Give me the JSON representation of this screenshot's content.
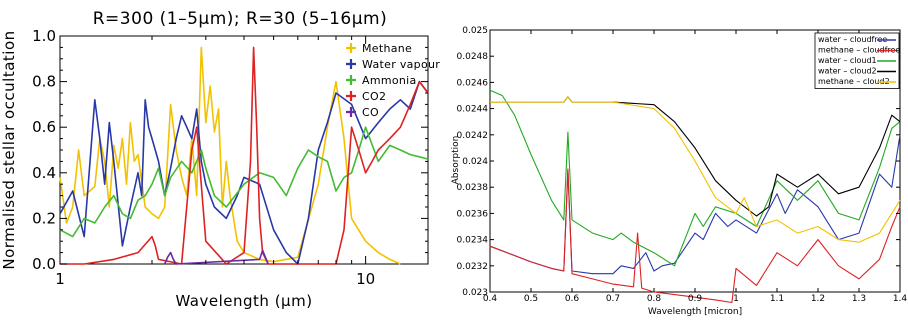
{
  "chart_data": [
    {
      "type": "line",
      "title": "R=300 (1–5μm); R=30 (5–16μm)",
      "xlabel": "Wavelength (μm)",
      "ylabel": "Normalised stellar occultation",
      "x_scale": "log",
      "xlim": [
        1,
        16
      ],
      "ylim": [
        0,
        1.0
      ],
      "x_ticks": [
        "1",
        "10"
      ],
      "y_ticks": [
        "0.0",
        "0.2",
        "0.4",
        "0.6",
        "0.8",
        "1.0"
      ],
      "legend_position": "top-right",
      "series": [
        {
          "name": "Methane",
          "color": "#f2c200",
          "x": [
            1.0,
            1.05,
            1.1,
            1.15,
            1.2,
            1.25,
            1.3,
            1.35,
            1.4,
            1.45,
            1.5,
            1.55,
            1.6,
            1.65,
            1.7,
            1.75,
            1.8,
            1.9,
            2.0,
            2.1,
            2.2,
            2.3,
            2.4,
            2.5,
            2.6,
            2.7,
            2.8,
            2.9,
            3.0,
            3.1,
            3.2,
            3.3,
            3.4,
            3.5,
            3.6,
            3.8,
            4.0,
            4.5,
            5.0,
            6.0,
            7.0,
            7.5,
            8.0,
            8.5,
            9.0,
            10.0,
            11.0,
            12.0,
            13.0
          ],
          "y": [
            0.38,
            0.18,
            0.25,
            0.5,
            0.3,
            0.32,
            0.34,
            0.55,
            0.45,
            0.25,
            0.52,
            0.42,
            0.55,
            0.35,
            0.62,
            0.45,
            0.48,
            0.25,
            0.22,
            0.2,
            0.25,
            0.7,
            0.5,
            0.38,
            0.3,
            0.55,
            0.3,
            0.95,
            0.62,
            0.78,
            0.58,
            0.68,
            0.25,
            0.45,
            0.3,
            0.1,
            0.05,
            0.02,
            0.01,
            0.03,
            0.35,
            0.6,
            0.8,
            0.55,
            0.2,
            0.1,
            0.05,
            0.02,
            0.0
          ]
        },
        {
          "name": "Water vapour",
          "color": "#2838a8",
          "x": [
            1.0,
            1.1,
            1.2,
            1.3,
            1.35,
            1.4,
            1.45,
            1.5,
            1.6,
            1.7,
            1.8,
            1.85,
            1.9,
            1.95,
            2.0,
            2.1,
            2.2,
            2.3,
            2.4,
            2.5,
            2.6,
            2.7,
            2.8,
            2.9,
            3.0,
            3.2,
            3.5,
            3.8,
            4.0,
            4.5,
            5.0,
            5.5,
            6.0,
            6.5,
            7.0,
            7.5,
            8.0,
            9.0,
            10.0,
            11.0,
            12.0,
            13.0,
            14.0,
            15.0,
            16.0
          ],
          "y": [
            0.22,
            0.32,
            0.12,
            0.72,
            0.55,
            0.35,
            0.62,
            0.45,
            0.08,
            0.25,
            0.4,
            0.3,
            0.72,
            0.6,
            0.55,
            0.45,
            0.3,
            0.42,
            0.55,
            0.65,
            0.6,
            0.55,
            0.68,
            0.45,
            0.35,
            0.25,
            0.2,
            0.3,
            0.38,
            0.35,
            0.15,
            0.05,
            0.0,
            0.2,
            0.5,
            0.62,
            0.75,
            0.7,
            0.55,
            0.62,
            0.68,
            0.72,
            0.68,
            0.8,
            0.75
          ]
        },
        {
          "name": "Ammonia",
          "color": "#44bb33",
          "x": [
            1.0,
            1.1,
            1.2,
            1.3,
            1.4,
            1.5,
            1.6,
            1.7,
            1.8,
            1.9,
            2.0,
            2.1,
            2.2,
            2.3,
            2.5,
            2.7,
            2.9,
            3.0,
            3.2,
            3.5,
            4.0,
            4.5,
            5.0,
            5.5,
            6.0,
            6.5,
            7.0,
            7.5,
            8.0,
            8.5,
            9.0,
            9.5,
            10.0,
            11.0,
            12.0,
            13.0,
            14.0,
            15.0,
            16.0
          ],
          "y": [
            0.15,
            0.12,
            0.2,
            0.18,
            0.25,
            0.3,
            0.22,
            0.2,
            0.28,
            0.3,
            0.35,
            0.42,
            0.3,
            0.38,
            0.45,
            0.4,
            0.5,
            0.42,
            0.3,
            0.25,
            0.35,
            0.4,
            0.38,
            0.3,
            0.42,
            0.5,
            0.47,
            0.45,
            0.32,
            0.38,
            0.4,
            0.5,
            0.6,
            0.45,
            0.52,
            0.5,
            0.48,
            0.47,
            0.46
          ]
        },
        {
          "name": "CO2",
          "color": "#dd2222",
          "x": [
            1.0,
            1.2,
            1.5,
            1.8,
            2.0,
            2.05,
            2.1,
            2.5,
            2.7,
            2.8,
            3.0,
            3.5,
            4.0,
            4.2,
            4.3,
            4.4,
            4.5,
            4.6,
            4.8,
            5.0,
            6.0,
            7.0,
            8.0,
            8.5,
            9.0,
            9.5,
            10.0,
            10.5,
            11.0,
            12.0,
            13.0,
            14.0,
            15.0,
            16.0
          ],
          "y": [
            0.0,
            0.0,
            0.02,
            0.05,
            0.12,
            0.08,
            0.02,
            0.0,
            0.5,
            0.6,
            0.1,
            0.0,
            0.05,
            0.45,
            0.95,
            0.6,
            0.2,
            0.05,
            0.0,
            0.0,
            0.0,
            0.0,
            0.0,
            0.15,
            0.6,
            0.5,
            0.4,
            0.45,
            0.5,
            0.55,
            0.6,
            0.7,
            0.8,
            0.75
          ]
        },
        {
          "name": "CO",
          "color": "#6a2aa8",
          "x": [
            2.2,
            2.25,
            2.3,
            2.35,
            2.4,
            4.5,
            4.6,
            4.7,
            4.8
          ],
          "y": [
            0.0,
            0.03,
            0.05,
            0.02,
            0.0,
            0.02,
            0.06,
            0.03,
            0.0
          ]
        }
      ]
    },
    {
      "type": "line",
      "xlabel": "Wavelength [micron]",
      "ylabel": "Absorption",
      "xlim": [
        0.4,
        1.4
      ],
      "ylim": [
        0.023,
        0.025
      ],
      "x_ticks": [
        "0.4",
        "0.5",
        "0.6",
        "0.7",
        "0.8",
        "0.9",
        "1",
        "1.1",
        "1.2",
        "1.3",
        "1.4"
      ],
      "y_ticks": [
        "0.023",
        "0.0232",
        "0.0234",
        "0.0236",
        "0.0238",
        "0.024",
        "0.0242",
        "0.0244",
        "0.0246",
        "0.0248",
        "0.025"
      ],
      "legend_position": "top-right",
      "series": [
        {
          "name": "water – cloudfree",
          "color": "#2838a8",
          "x": [
            0.4,
            0.45,
            0.5,
            0.55,
            0.58,
            0.59,
            0.6,
            0.65,
            0.7,
            0.72,
            0.75,
            0.78,
            0.8,
            0.82,
            0.85,
            0.9,
            0.92,
            0.95,
            0.98,
            1.0,
            1.05,
            1.1,
            1.12,
            1.15,
            1.2,
            1.25,
            1.3,
            1.35,
            1.38,
            1.4
          ],
          "y": [
            0.02335,
            0.02329,
            0.02323,
            0.02318,
            0.02316,
            0.02393,
            0.02316,
            0.02314,
            0.02314,
            0.0232,
            0.02318,
            0.0233,
            0.02316,
            0.0232,
            0.02322,
            0.02345,
            0.0234,
            0.0236,
            0.0235,
            0.02355,
            0.02345,
            0.02375,
            0.0236,
            0.02378,
            0.02365,
            0.0234,
            0.02345,
            0.0239,
            0.0238,
            0.0242
          ]
        },
        {
          "name": "methane – cloudfree",
          "color": "#dd2222",
          "x": [
            0.4,
            0.45,
            0.5,
            0.55,
            0.58,
            0.59,
            0.6,
            0.65,
            0.7,
            0.75,
            0.76,
            0.77,
            0.8,
            0.85,
            0.9,
            0.95,
            0.99,
            1.0,
            1.05,
            1.1,
            1.15,
            1.2,
            1.25,
            1.3,
            1.35,
            1.38,
            1.4
          ],
          "y": [
            0.02335,
            0.02329,
            0.02323,
            0.02318,
            0.02316,
            0.02394,
            0.02314,
            0.0231,
            0.02306,
            0.02304,
            0.02345,
            0.02303,
            0.023,
            0.02298,
            0.02296,
            0.02294,
            0.02292,
            0.02318,
            0.02305,
            0.0233,
            0.0232,
            0.0234,
            0.0232,
            0.0231,
            0.02325,
            0.0235,
            0.02365
          ]
        },
        {
          "name": "water – cloud1",
          "color": "#22aa22",
          "x": [
            0.4,
            0.43,
            0.46,
            0.5,
            0.55,
            0.58,
            0.59,
            0.6,
            0.65,
            0.7,
            0.72,
            0.75,
            0.8,
            0.85,
            0.9,
            0.92,
            0.95,
            1.0,
            1.05,
            1.1,
            1.15,
            1.2,
            1.25,
            1.3,
            1.35,
            1.38,
            1.4
          ],
          "y": [
            0.02454,
            0.0245,
            0.02435,
            0.02405,
            0.0237,
            0.02355,
            0.02422,
            0.02355,
            0.02345,
            0.0234,
            0.02345,
            0.02338,
            0.0233,
            0.0232,
            0.0236,
            0.0235,
            0.02365,
            0.0236,
            0.0235,
            0.02385,
            0.0237,
            0.02385,
            0.0236,
            0.02355,
            0.02395,
            0.02425,
            0.0243
          ]
        },
        {
          "name": "water – cloud2",
          "color": "#000000",
          "x": [
            0.4,
            0.5,
            0.58,
            0.59,
            0.6,
            0.7,
            0.8,
            0.85,
            0.9,
            0.95,
            1.0,
            1.05,
            1.08,
            1.1,
            1.15,
            1.2,
            1.25,
            1.3,
            1.35,
            1.38,
            1.4
          ],
          "y": [
            0.02445,
            0.02445,
            0.02445,
            0.02449,
            0.02445,
            0.02445,
            0.02443,
            0.0243,
            0.0241,
            0.02385,
            0.0237,
            0.02358,
            0.02365,
            0.0239,
            0.0238,
            0.0239,
            0.02375,
            0.0238,
            0.0241,
            0.02435,
            0.0243
          ]
        },
        {
          "name": "methane – cloud2",
          "color": "#f2c200",
          "x": [
            0.4,
            0.5,
            0.58,
            0.59,
            0.6,
            0.7,
            0.8,
            0.85,
            0.9,
            0.95,
            1.0,
            1.02,
            1.05,
            1.1,
            1.15,
            1.2,
            1.25,
            1.3,
            1.35,
            1.38,
            1.4
          ],
          "y": [
            0.02445,
            0.02445,
            0.02445,
            0.02449,
            0.02445,
            0.02445,
            0.0244,
            0.02425,
            0.024,
            0.02372,
            0.0236,
            0.02372,
            0.0235,
            0.02355,
            0.02345,
            0.0235,
            0.0234,
            0.02338,
            0.02345,
            0.0236,
            0.0237
          ]
        }
      ]
    }
  ]
}
